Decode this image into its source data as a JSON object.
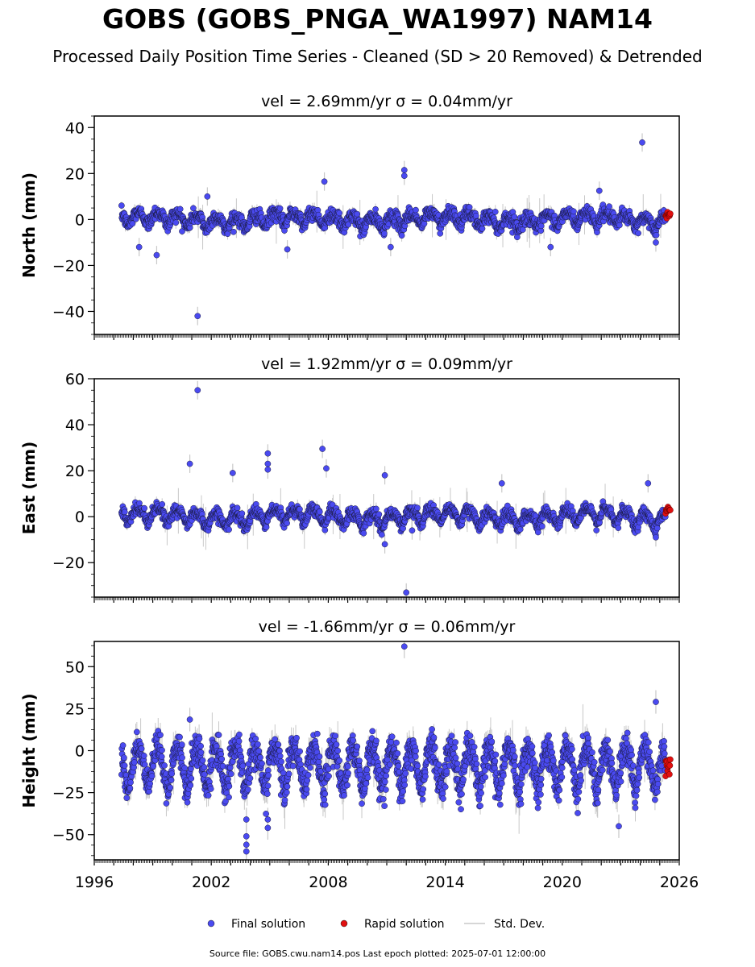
{
  "header": {
    "title": "GOBS (GOBS_PNGA_WA1997) NAM14",
    "subtitle": "Processed Daily Position Time Series - Cleaned (SD > 20 Removed) & Detrended"
  },
  "footer": {
    "text": "Source file: GOBS.cwu.nam14.pos  Last epoch plotted: 2025-07-01 12:00:00"
  },
  "colors": {
    "final": "#4a4af0",
    "final_edge": "#1a1a40",
    "rapid": "#e01010",
    "stddev": "#c8c8c8"
  },
  "legend": {
    "placement": "bottom-center",
    "items": [
      {
        "label": "Final solution",
        "marker": "circle",
        "color": "#4a4af0"
      },
      {
        "label": "Rapid solution",
        "marker": "circle",
        "color": "#e01010"
      },
      {
        "label": "Std. Dev.",
        "marker": "line",
        "color": "#c8c8c8"
      }
    ]
  },
  "chart_data": [
    {
      "type": "scatter",
      "title": "vel = 2.69mm/yr   σ = 0.04mm/yr",
      "ylabel": "North (mm)",
      "xlim": [
        1996,
        2026
      ],
      "ylim": [
        -50,
        45
      ],
      "yticks": [
        40,
        20,
        0,
        -20,
        -40
      ],
      "ytick_labels": [
        "40",
        "20",
        "0",
        "−20",
        "−40"
      ],
      "series": [
        {
          "name": "Final solution",
          "start": 1997.4,
          "end": 2025.3,
          "seasonal_amplitude": 2.5,
          "noise": 1.5
        },
        {
          "name": "Rapid solution",
          "start": 2025.3,
          "end": 2025.55,
          "center": 2.0
        }
      ],
      "outliers": [
        [
          2001.3,
          -42
        ],
        [
          2001.8,
          10
        ],
        [
          1998.3,
          -12
        ],
        [
          1999.2,
          -15.5
        ],
        [
          2007.8,
          16.5
        ],
        [
          2011.9,
          21.5
        ],
        [
          2011.9,
          19
        ],
        [
          2011.2,
          -12
        ],
        [
          2024.1,
          33.5
        ],
        [
          2021.9,
          12.5
        ],
        [
          2005.9,
          -13
        ],
        [
          2019.4,
          -12
        ],
        [
          2024.8,
          -10
        ]
      ]
    },
    {
      "type": "scatter",
      "title": "vel = 1.92mm/yr   σ = 0.09mm/yr",
      "ylabel": "East (mm)",
      "xlim": [
        1996,
        2026
      ],
      "ylim": [
        -35,
        60
      ],
      "yticks": [
        60,
        40,
        20,
        0,
        -20
      ],
      "ytick_labels": [
        "60",
        "40",
        "20",
        "0",
        "−20"
      ],
      "series": [
        {
          "name": "Final solution",
          "start": 1997.4,
          "end": 2025.3,
          "seasonal_amplitude": 2.8,
          "noise": 1.3
        },
        {
          "name": "Rapid solution",
          "start": 2025.3,
          "end": 2025.55,
          "center": 3.0
        }
      ],
      "outliers": [
        [
          2001.3,
          55
        ],
        [
          2000.9,
          23
        ],
        [
          2004.9,
          27.5
        ],
        [
          2004.9,
          23
        ],
        [
          2004.9,
          20.5
        ],
        [
          2007.7,
          29.5
        ],
        [
          2007.9,
          21
        ],
        [
          2003.1,
          19
        ],
        [
          2010.9,
          18
        ],
        [
          2010.9,
          -12
        ],
        [
          2012.0,
          -33
        ],
        [
          2012.3,
          -6
        ],
        [
          2024.8,
          -9
        ],
        [
          2024.4,
          14.5
        ],
        [
          2016.9,
          14.5
        ]
      ]
    },
    {
      "type": "scatter",
      "title": "vel = -1.66mm/yr   σ = 0.06mm/yr",
      "ylabel": "Height (mm)",
      "xlim": [
        1996,
        2026
      ],
      "ylim": [
        -65,
        65
      ],
      "yticks": [
        50,
        25,
        0,
        -25,
        -50
      ],
      "ytick_labels": [
        "50",
        "25",
        "0",
        "−25",
        "−50"
      ],
      "xticks": [
        1996,
        2002,
        2008,
        2014,
        2020,
        2026
      ],
      "xtick_labels": [
        "1996",
        "2002",
        "2008",
        "2014",
        "2020",
        "2026"
      ],
      "series": [
        {
          "name": "Final solution",
          "start": 1997.4,
          "end": 2025.3,
          "seasonal_amplitude": 12,
          "noise": 4.5,
          "center": -9
        },
        {
          "name": "Rapid solution",
          "start": 2025.3,
          "end": 2025.55,
          "center": -10
        }
      ],
      "outliers": [
        [
          2011.9,
          62
        ],
        [
          2003.8,
          -41
        ],
        [
          2003.8,
          -51
        ],
        [
          2003.8,
          -56
        ],
        [
          2003.8,
          -60
        ],
        [
          2004.9,
          -46
        ],
        [
          2004.9,
          -41
        ],
        [
          2024.8,
          29
        ],
        [
          2022.9,
          -45
        ],
        [
          2000.9,
          18.5
        ]
      ]
    }
  ]
}
